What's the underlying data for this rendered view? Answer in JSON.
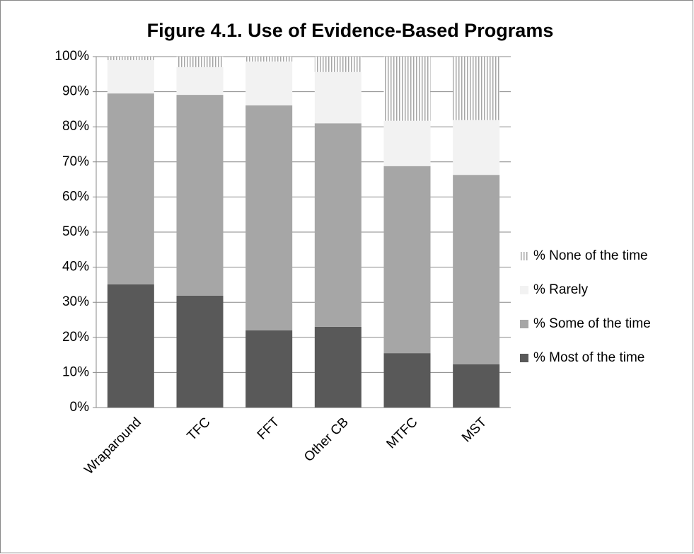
{
  "chart_data": {
    "type": "stacked-bar",
    "title": "Figure 4.1.  Use of Evidence-Based Programs",
    "categories": [
      "Wraparound",
      "TFC",
      "FFT",
      "Other CB",
      "MTFC",
      "MST"
    ],
    "series": [
      {
        "name": "% Most of the time",
        "color": "#595959",
        "values": [
          35.1,
          31.9,
          22.0,
          23.0,
          15.5,
          12.3
        ]
      },
      {
        "name": "% Some of the time",
        "color": "#a6a6a6",
        "values": [
          54.4,
          57.2,
          64.1,
          58.0,
          53.3,
          54.0
        ]
      },
      {
        "name": "% Rarely",
        "color": "#f2f2f2",
        "values": [
          9.5,
          7.9,
          12.5,
          14.6,
          12.9,
          15.6
        ]
      },
      {
        "name": "% None of the time",
        "color": "#a6a6a6",
        "pattern": "vertical-stripes",
        "values": [
          1.0,
          3.0,
          1.4,
          4.4,
          18.3,
          18.1
        ]
      }
    ],
    "ylim": [
      0,
      100
    ],
    "yticks": [
      {
        "value": 0,
        "label": "0%"
      },
      {
        "value": 10,
        "label": "10%"
      },
      {
        "value": 20,
        "label": "20%"
      },
      {
        "value": 30,
        "label": "30%"
      },
      {
        "value": 40,
        "label": "40%"
      },
      {
        "value": 50,
        "label": "50%"
      },
      {
        "value": 60,
        "label": "60%"
      },
      {
        "value": 70,
        "label": "70%"
      },
      {
        "value": 80,
        "label": "80%"
      },
      {
        "value": 90,
        "label": "90%"
      },
      {
        "value": 100,
        "label": "100%"
      }
    ],
    "grid": true,
    "legend": "right"
  }
}
